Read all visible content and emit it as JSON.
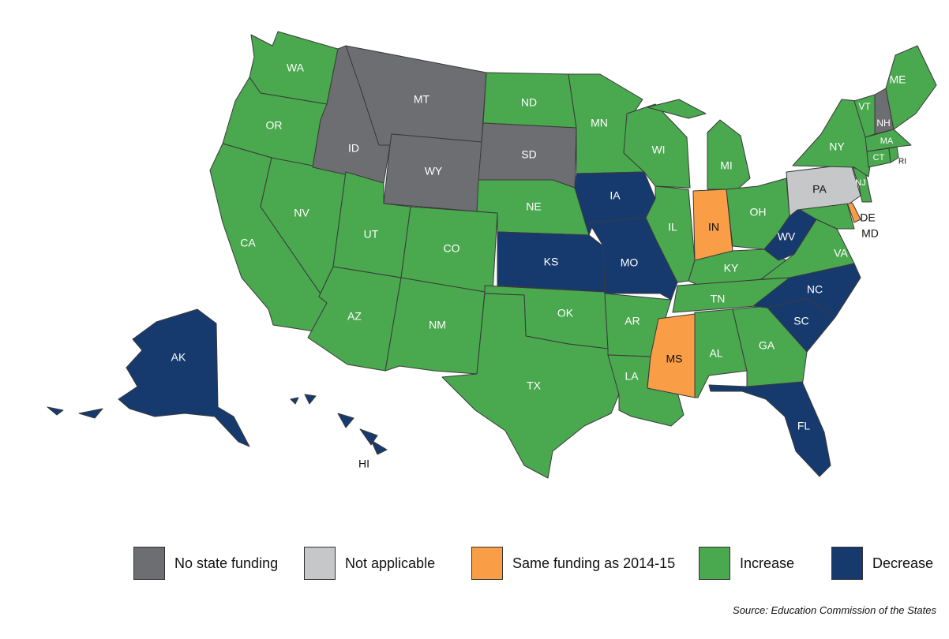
{
  "colors": {
    "no_state_funding": "#6d6e71",
    "not_applicable": "#c6c7c9",
    "same_funding": "#f99d47",
    "increase": "#4aa84f",
    "decrease": "#163a6e"
  },
  "legend": [
    {
      "key": "no_state_funding",
      "label": "No state funding"
    },
    {
      "key": "not_applicable",
      "label": "Not applicable"
    },
    {
      "key": "same_funding",
      "label": "Same funding as 2014-15"
    },
    {
      "key": "increase",
      "label": "Increase"
    },
    {
      "key": "decrease",
      "label": "Decrease"
    }
  ],
  "source": "Source: Education Commission of the States",
  "states": {
    "WA": "increase",
    "OR": "increase",
    "CA": "increase",
    "NV": "increase",
    "ID": "no_state_funding",
    "MT": "no_state_funding",
    "WY": "no_state_funding",
    "UT": "increase",
    "AZ": "increase",
    "CO": "increase",
    "NM": "increase",
    "ND": "increase",
    "SD": "no_state_funding",
    "NE": "increase",
    "KS": "decrease",
    "OK": "increase",
    "TX": "increase",
    "MN": "increase",
    "IA": "decrease",
    "MO": "decrease",
    "AR": "increase",
    "LA": "increase",
    "WI": "increase",
    "IL": "increase",
    "MS": "same_funding",
    "MI": "increase",
    "IN": "same_funding",
    "KY": "increase",
    "TN": "increase",
    "AL": "increase",
    "OH": "increase",
    "WV": "decrease",
    "VA": "increase",
    "NC": "decrease",
    "SC": "decrease",
    "GA": "increase",
    "FL": "decrease",
    "PA": "not_applicable",
    "NY": "increase",
    "VT": "increase",
    "NH": "no_state_funding",
    "ME": "increase",
    "MA": "increase",
    "CT": "increase",
    "RI": "increase",
    "NJ": "increase",
    "DE": "same_funding",
    "MD": "increase",
    "AK": "decrease",
    "HI": "decrease"
  }
}
